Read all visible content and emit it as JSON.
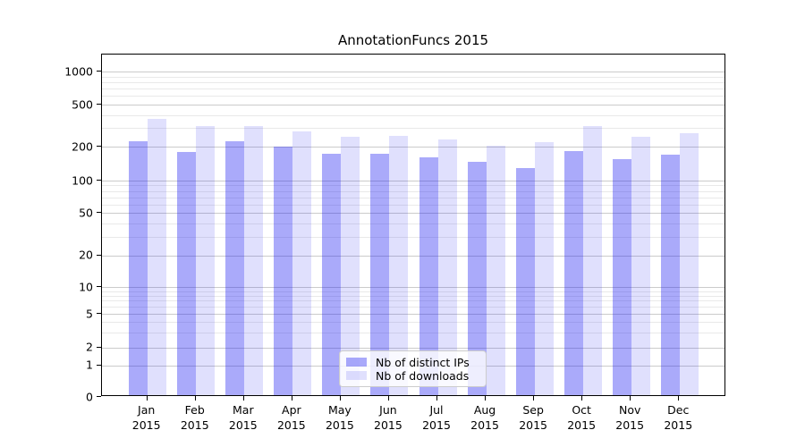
{
  "title": "AnnotationFuncs 2015",
  "chart_data": {
    "type": "bar",
    "title": "AnnotationFuncs 2015",
    "xlabel": "",
    "ylabel": "",
    "yscale": "symlog",
    "ylim": [
      0,
      1450
    ],
    "grid": "both",
    "legend_position": "lower center",
    "categories": [
      "Jan",
      "Feb",
      "Mar",
      "Apr",
      "May",
      "Jun",
      "Jul",
      "Aug",
      "Sep",
      "Oct",
      "Nov",
      "Dec"
    ],
    "category_year": "2015",
    "yticks": [
      0,
      1,
      2,
      5,
      10,
      20,
      50,
      100,
      200,
      500,
      1000
    ],
    "minor_gridline_values": [
      3,
      4,
      6,
      7,
      8,
      9,
      30,
      40,
      60,
      70,
      80,
      90,
      300,
      400,
      600,
      700,
      800,
      900
    ],
    "series": [
      {
        "name": "Nb of distinct IPs",
        "color": "rgba(20,20,240,0.36)",
        "values": [
          220,
          176,
          220,
          196,
          171,
          169,
          158,
          144,
          126,
          179,
          154,
          166
        ]
      },
      {
        "name": "Nb of downloads",
        "color": "rgba(20,20,240,0.135)",
        "values": [
          363,
          310,
          308,
          272,
          242,
          249,
          232,
          200,
          217,
          306,
          245,
          263
        ]
      }
    ]
  },
  "colors": {
    "bar_distinct_ips": "rgba(20,20,240,0.36)",
    "bar_downloads": "rgba(20,20,240,0.135)",
    "gridline_major": "#cbcbcb",
    "gridline_minor": "#e9e9e9",
    "axis": "#000000",
    "background": "#ffffff"
  }
}
